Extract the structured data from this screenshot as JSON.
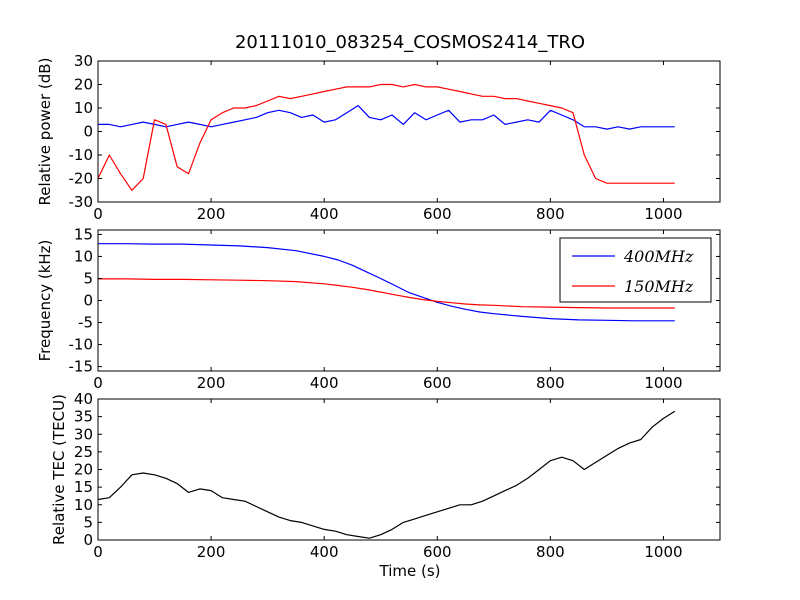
{
  "chart_data": [
    {
      "type": "line",
      "title": "20111010_083254_COSMOS2414_TRO",
      "xlabel": "",
      "ylabel": "Relative power (dB)",
      "xlim": [
        0,
        1100
      ],
      "ylim": [
        -30,
        30
      ],
      "xticks": [
        0,
        200,
        400,
        600,
        800,
        1000
      ],
      "yticks": [
        -30,
        -20,
        -10,
        0,
        10,
        20,
        30
      ],
      "legend": null,
      "series": [
        {
          "color": "#0000ff",
          "x": [
            0,
            20,
            40,
            60,
            80,
            100,
            120,
            140,
            160,
            180,
            200,
            220,
            240,
            260,
            280,
            300,
            320,
            340,
            360,
            380,
            400,
            420,
            440,
            460,
            480,
            500,
            520,
            540,
            560,
            580,
            600,
            620,
            640,
            660,
            680,
            700,
            720,
            740,
            760,
            780,
            800,
            820,
            840,
            860,
            880,
            900,
            920,
            940,
            960,
            980,
            1000,
            1020
          ],
          "y": [
            3,
            3,
            2,
            3,
            4,
            3,
            2,
            3,
            4,
            3,
            2,
            3,
            4,
            5,
            6,
            8,
            9,
            8,
            6,
            7,
            4,
            5,
            8,
            11,
            6,
            5,
            7,
            3,
            8,
            5,
            7,
            9,
            4,
            5,
            5,
            7,
            3,
            4,
            5,
            4,
            9,
            7,
            5,
            2,
            2,
            1,
            2,
            1,
            2,
            2,
            2,
            2
          ]
        },
        {
          "color": "#ff0000",
          "x": [
            0,
            20,
            40,
            60,
            80,
            100,
            120,
            140,
            160,
            180,
            200,
            220,
            240,
            260,
            280,
            300,
            320,
            340,
            360,
            380,
            400,
            420,
            440,
            460,
            480,
            500,
            520,
            540,
            560,
            580,
            600,
            620,
            640,
            660,
            680,
            700,
            720,
            740,
            760,
            780,
            800,
            820,
            840,
            860,
            880,
            900,
            920,
            940,
            960,
            980,
            1000,
            1020
          ],
          "y": [
            -20,
            -10,
            -18,
            -25,
            -20,
            5,
            3,
            -15,
            -18,
            -5,
            5,
            8,
            10,
            10,
            11,
            13,
            15,
            14,
            15,
            16,
            17,
            18,
            19,
            19,
            19,
            20,
            20,
            19,
            20,
            19,
            19,
            18,
            17,
            16,
            15,
            15,
            14,
            14,
            13,
            12,
            11,
            10,
            8,
            -10,
            -20,
            -22,
            -22,
            -22,
            -22,
            -22,
            -22,
            -22
          ]
        }
      ]
    },
    {
      "type": "line",
      "title": "",
      "xlabel": "",
      "ylabel": "Frequency (kHz)",
      "xlim": [
        0,
        1100
      ],
      "ylim": [
        -16,
        16
      ],
      "xticks": [
        0,
        200,
        400,
        600,
        800,
        1000
      ],
      "yticks": [
        -15,
        -10,
        -5,
        0,
        5,
        10,
        15
      ],
      "legend": "top-right",
      "series": [
        {
          "name": "400MHz",
          "color": "#0000ff",
          "x": [
            0,
            50,
            100,
            150,
            200,
            250,
            300,
            350,
            400,
            425,
            450,
            475,
            500,
            525,
            550,
            575,
            600,
            625,
            650,
            675,
            700,
            750,
            800,
            850,
            900,
            950,
            1000,
            1020
          ],
          "y": [
            12.9,
            12.9,
            12.8,
            12.8,
            12.6,
            12.4,
            12.0,
            11.3,
            10.0,
            9.2,
            8.0,
            6.5,
            5.0,
            3.4,
            1.8,
            0.7,
            -0.4,
            -1.3,
            -2.0,
            -2.6,
            -3.0,
            -3.6,
            -4.1,
            -4.4,
            -4.5,
            -4.6,
            -4.6,
            -4.6
          ]
        },
        {
          "name": "150MHz",
          "color": "#ff0000",
          "x": [
            0,
            50,
            100,
            150,
            200,
            250,
            300,
            350,
            400,
            425,
            450,
            475,
            500,
            525,
            550,
            575,
            600,
            625,
            650,
            675,
            700,
            750,
            800,
            850,
            900,
            950,
            1000,
            1020
          ],
          "y": [
            4.9,
            4.9,
            4.8,
            4.8,
            4.7,
            4.6,
            4.5,
            4.3,
            3.8,
            3.4,
            3.0,
            2.5,
            1.9,
            1.3,
            0.7,
            0.2,
            -0.2,
            -0.5,
            -0.8,
            -1.0,
            -1.1,
            -1.4,
            -1.5,
            -1.6,
            -1.7,
            -1.7,
            -1.7,
            -1.7
          ]
        }
      ]
    },
    {
      "type": "line",
      "title": "",
      "xlabel": "Time (s)",
      "ylabel": "Relative TEC (TECU)",
      "xlim": [
        0,
        1100
      ],
      "ylim": [
        0,
        40
      ],
      "xticks": [
        0,
        200,
        400,
        600,
        800,
        1000
      ],
      "yticks": [
        0,
        5,
        10,
        15,
        20,
        25,
        30,
        35,
        40
      ],
      "legend": null,
      "series": [
        {
          "color": "#000000",
          "x": [
            0,
            20,
            40,
            60,
            80,
            100,
            120,
            140,
            160,
            180,
            200,
            220,
            240,
            260,
            280,
            300,
            320,
            340,
            360,
            380,
            400,
            420,
            440,
            460,
            480,
            500,
            520,
            540,
            560,
            580,
            600,
            620,
            640,
            660,
            680,
            700,
            720,
            740,
            760,
            780,
            800,
            820,
            840,
            860,
            880,
            900,
            920,
            940,
            960,
            980,
            1000,
            1020
          ],
          "y": [
            11.5,
            12.0,
            15.0,
            18.5,
            19.0,
            18.5,
            17.5,
            16.0,
            13.5,
            14.5,
            14.0,
            12.0,
            11.5,
            11.0,
            9.5,
            8.0,
            6.5,
            5.5,
            5.0,
            4.0,
            3.0,
            2.5,
            1.5,
            1.0,
            0.5,
            1.5,
            3.0,
            5.0,
            6.0,
            7.0,
            8.0,
            9.0,
            10.0,
            10.0,
            11.0,
            12.5,
            14.0,
            15.5,
            17.5,
            20.0,
            22.5,
            23.5,
            22.5,
            20.0,
            22.0,
            24.0,
            26.0,
            27.5,
            28.5,
            32.0,
            34.5,
            36.5
          ]
        }
      ]
    }
  ]
}
